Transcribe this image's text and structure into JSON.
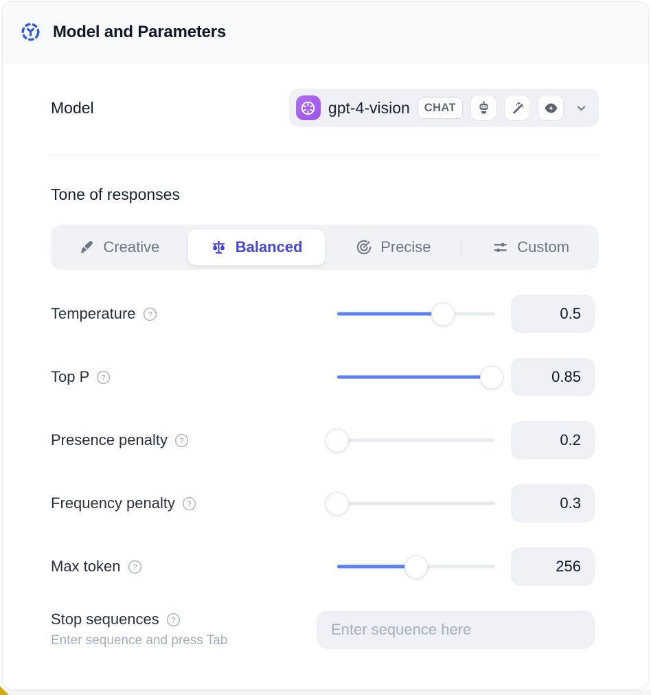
{
  "header": {
    "title": "Model and Parameters",
    "icon": "model-hub-icon",
    "accent_color": "#2e5be6"
  },
  "model_row": {
    "label": "Model",
    "selected_model": {
      "name": "gpt-4-vision",
      "provider_icon": "openai-logo",
      "provider_color": "#a763f2",
      "type_badge": "CHAT",
      "capability_icons": [
        "assistant-robot-icon",
        "magic-wand-icon",
        "vision-eye-icon"
      ]
    }
  },
  "tone": {
    "label": "Tone of responses",
    "selected_color": "#4646dd",
    "tabs": [
      {
        "label": "Creative",
        "icon": "paintbrush-icon",
        "selected": false
      },
      {
        "label": "Balanced",
        "icon": "balance-scale-icon",
        "selected": true
      },
      {
        "label": "Precise",
        "icon": "target-icon",
        "selected": false
      },
      {
        "label": "Custom",
        "icon": "sliders-icon",
        "selected": false
      }
    ]
  },
  "parameters": {
    "slider_color": "#5b80f0",
    "rows": [
      {
        "label": "Temperature",
        "value": "0.5",
        "percent": 67
      },
      {
        "label": "Top P",
        "value": "0.85",
        "percent": 98
      },
      {
        "label": "Presence penalty",
        "value": "0.2",
        "percent": 0
      },
      {
        "label": "Frequency penalty",
        "value": "0.3",
        "percent": 0
      },
      {
        "label": "Max token",
        "value": "256",
        "percent": 50
      }
    ]
  },
  "stop_sequences": {
    "label": "Stop sequences",
    "hint": "Enter sequence and press Tab",
    "placeholder": "Enter sequence here",
    "value": ""
  }
}
